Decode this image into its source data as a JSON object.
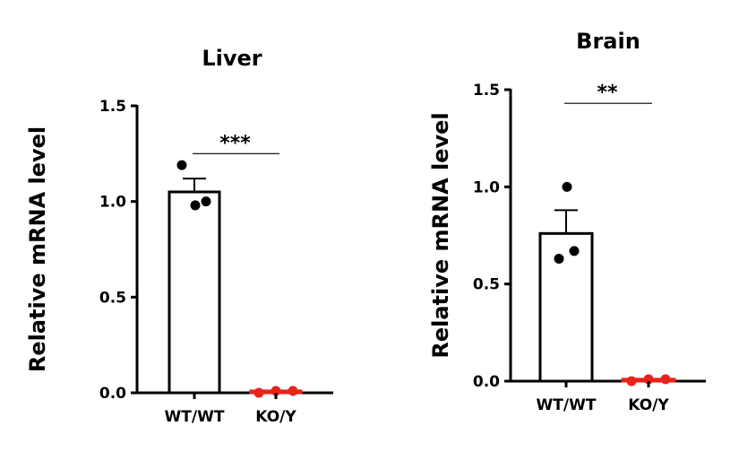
{
  "chart_data": [
    {
      "type": "bar",
      "title": "Liver",
      "ylabel": "Relative mRNA level",
      "xlabel": "",
      "ylim": [
        0,
        1.5
      ],
      "yticks": [
        "0.0",
        "0.5",
        "1.0",
        "1.5"
      ],
      "categories": [
        "WT/WT",
        "KO/Y"
      ],
      "series": [
        {
          "values": [
            1.05,
            0.01
          ],
          "errors": [
            0.07,
            0.005
          ],
          "points": [
            [
              1.19,
              0.98,
              1.0
            ],
            [
              0.0,
              0.01,
              0.01
            ]
          ],
          "colors": [
            "#000000",
            "#e8231a"
          ]
        }
      ],
      "significance": {
        "label": "***",
        "between": [
          0,
          1
        ],
        "y": 1.25
      }
    },
    {
      "type": "bar",
      "title": "Brain",
      "ylabel": "Relative mRNA level",
      "xlabel": "",
      "ylim": [
        0,
        1.5
      ],
      "yticks": [
        "0.0",
        "0.5",
        "1.0",
        "1.5"
      ],
      "categories": [
        "WT/WT",
        "KO/Y"
      ],
      "series": [
        {
          "values": [
            0.76,
            0.01
          ],
          "errors": [
            0.12,
            0.005
          ],
          "points": [
            [
              1.0,
              0.63,
              0.67
            ],
            [
              0.0,
              0.01,
              0.01
            ]
          ],
          "colors": [
            "#000000",
            "#e8231a"
          ]
        }
      ],
      "significance": {
        "label": "**",
        "between": [
          0,
          1
        ],
        "y": 1.43
      }
    }
  ]
}
